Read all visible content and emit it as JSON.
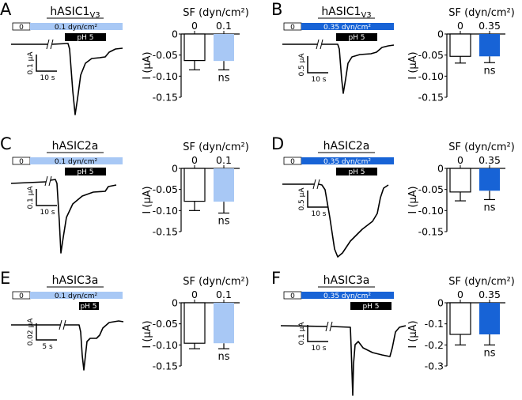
{
  "colors": {
    "light_blue": "#a8c8f5",
    "dark_blue": "#1763d6",
    "black": "#000000",
    "white": "#ffffff"
  },
  "panels": [
    {
      "letter": "A",
      "title": "hASIC1",
      "title_sub": "V3",
      "sf_zero_label": "0",
      "sf_label": "0.1 dyn/cm²",
      "ph_label": "pH 5",
      "scale_y": "0.1 µA",
      "scale_x": "10 s",
      "sf_color": "#a8c8f5",
      "trace": "a1"
    },
    {
      "letter": "B",
      "title": "hASIC1",
      "title_sub": "V3",
      "sf_zero_label": "0",
      "sf_label": "0.35 dyn/cm²",
      "ph_label": "pH 5",
      "scale_y": "0.5 µA",
      "scale_x": "10 s",
      "sf_color": "#1763d6",
      "trace": "a1b"
    },
    {
      "letter": "C",
      "title": "hASIC2a",
      "title_sub": "",
      "sf_zero_label": "0",
      "sf_label": "0.1 dyn/cm²",
      "ph_label": "pH 5",
      "scale_y": "0.1 µA",
      "scale_x": "10 s",
      "sf_color": "#a8c8f5",
      "trace": "a2"
    },
    {
      "letter": "D",
      "title": "hASIC2a",
      "title_sub": "",
      "sf_zero_label": "0",
      "sf_label": "0.35 dyn/cm²",
      "ph_label": "pH 5",
      "scale_y": "0.5 µA",
      "scale_x": "10 s",
      "sf_color": "#1763d6",
      "trace": "a2b"
    },
    {
      "letter": "E",
      "title": "hASIC3a",
      "title_sub": "",
      "sf_zero_label": "0",
      "sf_label": "0.1 dyn/cm²",
      "ph_label": "pH 5",
      "scale_y": "0.02 µA",
      "scale_x": "5 s",
      "sf_color": "#a8c8f5",
      "trace": "a3"
    },
    {
      "letter": "F",
      "title": "hASIC3a",
      "title_sub": "",
      "sf_zero_label": "0",
      "sf_label": "0.35 dyn/cm²",
      "ph_label": "pH 5",
      "scale_y": "0.1 µA",
      "scale_x": "10 s",
      "sf_color": "#1763d6",
      "trace": "a3b"
    }
  ],
  "chart_data": [
    {
      "type": "bar",
      "panel": "A",
      "title": "SF (dyn/cm²)",
      "ylabel": "I (µA)",
      "categories": [
        "0",
        "0.1"
      ],
      "values": [
        -0.063,
        -0.064
      ],
      "errors": [
        0.022,
        0.021
      ],
      "bar_colors": [
        "#ffffff",
        "#a8c8f5"
      ],
      "ylim": [
        -0.15,
        0
      ],
      "yticks": [
        0,
        -0.05,
        -0.1,
        -0.15
      ],
      "ytick_labels": [
        "0",
        "-0.05",
        "-0.10",
        "-0.15"
      ],
      "annotation": "ns"
    },
    {
      "type": "bar",
      "panel": "B",
      "title": "SF (dyn/cm²)",
      "ylabel": "I (µA)",
      "categories": [
        "0",
        "0.35"
      ],
      "values": [
        -0.053,
        -0.053
      ],
      "errors": [
        0.016,
        0.015
      ],
      "bar_colors": [
        "#ffffff",
        "#1763d6"
      ],
      "ylim": [
        -0.15,
        0
      ],
      "yticks": [
        0,
        -0.05,
        -0.1,
        -0.15
      ],
      "ytick_labels": [
        "0",
        "-0.05",
        "-0.10",
        "-0.15"
      ],
      "annotation": "ns"
    },
    {
      "type": "bar",
      "panel": "C",
      "title": "SF (dyn/cm²)",
      "ylabel": "I (µA)",
      "categories": [
        "0",
        "0.1"
      ],
      "values": [
        -0.078,
        -0.079
      ],
      "errors": [
        0.022,
        0.027
      ],
      "bar_colors": [
        "#ffffff",
        "#a8c8f5"
      ],
      "ylim": [
        -0.15,
        0
      ],
      "yticks": [
        0,
        -0.05,
        -0.1,
        -0.15
      ],
      "ytick_labels": [
        "0",
        "-0.05",
        "-0.10",
        "-0.15"
      ],
      "annotation": "ns"
    },
    {
      "type": "bar",
      "panel": "D",
      "title": "SF (dyn/cm²)",
      "ylabel": "I (µA)",
      "categories": [
        "0",
        "0.35"
      ],
      "values": [
        -0.056,
        -0.053
      ],
      "errors": [
        0.021,
        0.021
      ],
      "bar_colors": [
        "#ffffff",
        "#1763d6"
      ],
      "ylim": [
        -0.15,
        0
      ],
      "yticks": [
        0,
        -0.05,
        -0.1,
        -0.15
      ],
      "ytick_labels": [
        "0",
        "-0.05",
        "-0.10",
        "-0.15"
      ],
      "annotation": "ns"
    },
    {
      "type": "bar",
      "panel": "E",
      "title": "SF (dyn/cm²)",
      "ylabel": "I (µA)",
      "categories": [
        "0",
        "0.1"
      ],
      "values": [
        -0.096,
        -0.096
      ],
      "errors": [
        0.013,
        0.013
      ],
      "bar_colors": [
        "#ffffff",
        "#a8c8f5"
      ],
      "ylim": [
        -0.15,
        0
      ],
      "yticks": [
        0,
        -0.05,
        -0.1,
        -0.15
      ],
      "ytick_labels": [
        "0",
        "-0.05",
        "-0.10",
        "-0.15"
      ],
      "annotation": "ns"
    },
    {
      "type": "bar",
      "panel": "F",
      "title": "SF (dyn/cm²)",
      "ylabel": "I (µA)",
      "categories": [
        "0",
        "0.35"
      ],
      "values": [
        -0.15,
        -0.15
      ],
      "errors": [
        0.05,
        0.05
      ],
      "bar_colors": [
        "#ffffff",
        "#1763d6"
      ],
      "ylim": [
        -0.3,
        0
      ],
      "yticks": [
        0,
        -0.1,
        -0.2,
        -0.3
      ],
      "ytick_labels": [
        "0",
        "-0.1",
        "-0.2",
        "-0.3"
      ],
      "annotation": "ns"
    }
  ]
}
